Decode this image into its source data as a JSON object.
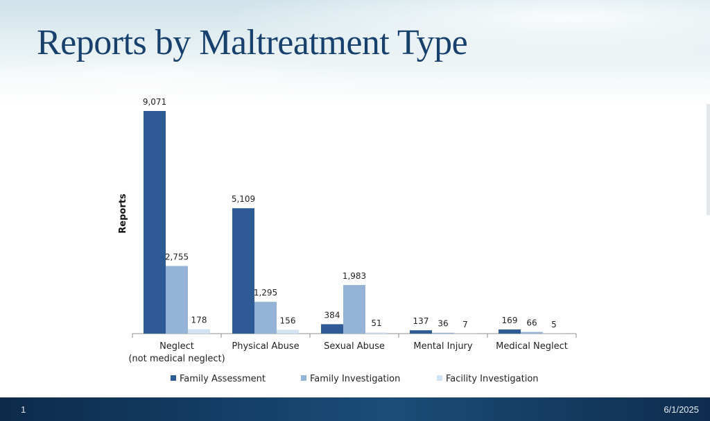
{
  "slide": {
    "title": "Reports by Maltreatment Type",
    "number": "1",
    "date": "6/1/2025"
  },
  "colors": {
    "title": "#17406d",
    "family_assessment": "#2e5b95",
    "family_investigation": "#95b3d7",
    "facility_investigation": "#d4e3f1"
  },
  "chart_data": {
    "type": "bar",
    "title": "",
    "ylabel": "Reports",
    "xlabel": "",
    "ylim": [
      0,
      9071
    ],
    "grid": false,
    "legend_position": "bottom",
    "categories": [
      [
        "Neglect",
        "(not medical neglect)"
      ],
      [
        "Physical Abuse"
      ],
      [
        "Sexual Abuse"
      ],
      [
        "Mental Injury"
      ],
      [
        "Medical Neglect"
      ]
    ],
    "series": [
      {
        "name": "Family Assessment",
        "color": "#2e5b95",
        "values": [
          9071,
          5109,
          384,
          137,
          169
        ],
        "labels": [
          "9,071",
          "5,109",
          "384",
          "137",
          "169"
        ]
      },
      {
        "name": "Family Investigation",
        "color": "#95b3d7",
        "values": [
          2755,
          1295,
          1983,
          36,
          66
        ],
        "labels": [
          "2,755",
          "1,295",
          "1,983",
          "36",
          "66"
        ]
      },
      {
        "name": "Facility Investigation",
        "color": "#d4e3f1",
        "values": [
          178,
          156,
          51,
          7,
          5
        ],
        "labels": [
          "178",
          "156",
          "51",
          "7",
          "5"
        ]
      }
    ]
  }
}
